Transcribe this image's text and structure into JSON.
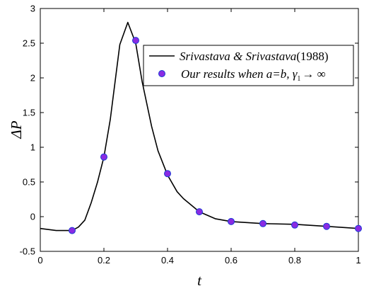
{
  "chart_data": {
    "type": "line",
    "title": "",
    "xlabel": "t",
    "ylabel": "ΔP",
    "xlim": [
      0,
      1
    ],
    "ylim": [
      -0.5,
      3
    ],
    "xticks": [
      "0",
      "0.2",
      "0.4",
      "0.6",
      "0.8",
      "1"
    ],
    "xtick_values": [
      0,
      0.2,
      0.4,
      0.6,
      0.8,
      1
    ],
    "yticks": [
      "-0.5",
      "0",
      "0.5",
      "1",
      "1.5",
      "2",
      "2.5",
      "3"
    ],
    "ytick_values": [
      -0.5,
      0,
      0.5,
      1,
      1.5,
      2,
      2.5,
      3
    ],
    "grid": false,
    "legend_position": "top-right",
    "series": [
      {
        "name": "Srivastava & Srivastava(1988)",
        "name_italic": "Srivastava & Srivastava",
        "name_plain": "(1988)",
        "style": "line",
        "color": "#000000",
        "x": [
          0,
          0.05,
          0.1,
          0.12,
          0.14,
          0.16,
          0.18,
          0.2,
          0.22,
          0.25,
          0.275,
          0.3,
          0.32,
          0.35,
          0.37,
          0.4,
          0.43,
          0.45,
          0.5,
          0.55,
          0.6,
          0.7,
          0.8,
          0.9,
          1
        ],
        "y": [
          -0.17,
          -0.2,
          -0.2,
          -0.15,
          -0.05,
          0.2,
          0.5,
          0.86,
          1.4,
          2.48,
          2.8,
          2.5,
          1.95,
          1.3,
          0.95,
          0.6,
          0.36,
          0.26,
          0.07,
          -0.03,
          -0.07,
          -0.1,
          -0.11,
          -0.14,
          -0.17
        ]
      },
      {
        "name": "Our results when a=b, γ₁→ ∞",
        "name_italic": "Our results when a=b, ",
        "name_gamma": "γ",
        "name_sub": "1",
        "name_arrow": "→ ∞",
        "style": "markers",
        "color": "#8a2be2",
        "edge_color": "#1a3bd6",
        "x": [
          0.1,
          0.2,
          0.3,
          0.4,
          0.5,
          0.6,
          0.7,
          0.8,
          0.9,
          1.0
        ],
        "y": [
          -0.2,
          0.86,
          2.54,
          0.62,
          0.07,
          -0.07,
          -0.1,
          -0.12,
          -0.14,
          -0.17
        ]
      }
    ]
  }
}
